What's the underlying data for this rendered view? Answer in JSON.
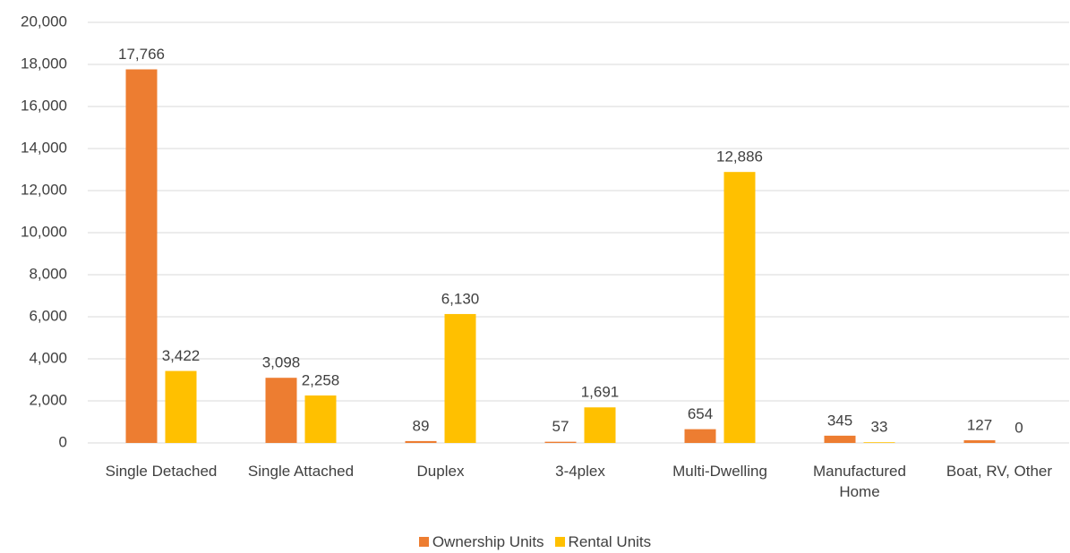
{
  "chart_data": {
    "type": "bar",
    "categories": [
      "Single Detached",
      "Single Attached",
      "Duplex",
      "3-4plex",
      "Multi-Dwelling",
      "Manufactured Home",
      "Boat, RV, Other"
    ],
    "series": [
      {
        "name": "Ownership Units",
        "color": "#ed7d31",
        "values": [
          17766,
          3098,
          89,
          57,
          654,
          345,
          127
        ],
        "value_labels": [
          "17,766",
          "3,098",
          "89",
          "57",
          "654",
          "345",
          "127"
        ]
      },
      {
        "name": "Rental Units",
        "color": "#ffc000",
        "values": [
          3422,
          2258,
          6130,
          1691,
          12886,
          33,
          0
        ],
        "value_labels": [
          "3,422",
          "2,258",
          "6,130",
          "1,691",
          "12,886",
          "33",
          "0"
        ]
      }
    ],
    "ylim": [
      0,
      20000
    ],
    "yticks": [
      0,
      {
        "value": 2000,
        "label": "2,000"
      },
      {
        "value": 4000,
        "label": "4,000"
      },
      {
        "value": 6000,
        "label": "6,000"
      },
      {
        "value": 8000,
        "label": "8,000"
      },
      {
        "value": 10000,
        "label": "10,000"
      },
      {
        "value": 12000,
        "label": "12,000"
      },
      {
        "value": 14000,
        "label": "14,000"
      },
      {
        "value": 16000,
        "label": "16,000"
      },
      {
        "value": 18000,
        "label": "18,000"
      },
      {
        "value": 20000,
        "label": "20,000"
      }
    ],
    "grid": true,
    "legend": "bottom"
  }
}
